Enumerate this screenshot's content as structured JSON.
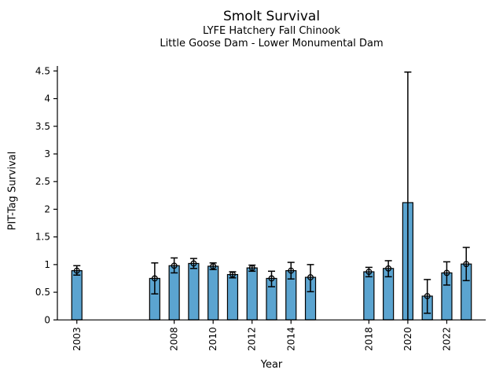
{
  "chart_data": {
    "type": "bar",
    "title": "Smolt Survival",
    "subtitle1": "LYFE Hatchery Fall Chinook",
    "subtitle2": "Little Goose Dam - Lower Monumental Dam",
    "xlabel": "Year",
    "ylabel": "PIT-Tag Survival",
    "xlim": [
      2002,
      2024
    ],
    "ylim": [
      0,
      4.59
    ],
    "xtick_labels": [
      "2003",
      "2008",
      "2010",
      "2012",
      "2014",
      "2018",
      "2020",
      "2022"
    ],
    "ytick_labels": [
      "0",
      "0.5",
      "1",
      "1.5",
      "2",
      "2.5",
      "3",
      "3.5",
      "4",
      "4.5"
    ],
    "grid": false,
    "legend": null,
    "bar_color": "#5BA4D0",
    "bar_edge_color": "#000000",
    "error_color": "#000000",
    "points": [
      {
        "year": 2003,
        "value": 0.89,
        "lo": 0.81,
        "hi": 0.98,
        "marker": true,
        "cap_lo": true
      },
      {
        "year": 2007,
        "value": 0.75,
        "lo": 0.47,
        "hi": 1.03,
        "marker": true,
        "cap_lo": true
      },
      {
        "year": 2008,
        "value": 0.98,
        "lo": 0.85,
        "hi": 1.12,
        "marker": true,
        "cap_lo": true
      },
      {
        "year": 2009,
        "value": 1.02,
        "lo": 0.93,
        "hi": 1.11,
        "marker": true,
        "cap_lo": true
      },
      {
        "year": 2010,
        "value": 0.97,
        "lo": 0.91,
        "hi": 1.03,
        "marker": true,
        "cap_lo": true
      },
      {
        "year": 2011,
        "value": 0.82,
        "lo": 0.76,
        "hi": 0.87,
        "marker": true,
        "cap_lo": true
      },
      {
        "year": 2012,
        "value": 0.94,
        "lo": 0.88,
        "hi": 0.99,
        "marker": true,
        "cap_lo": true
      },
      {
        "year": 2013,
        "value": 0.75,
        "lo": 0.6,
        "hi": 0.88,
        "marker": true,
        "cap_lo": true
      },
      {
        "year": 2014,
        "value": 0.89,
        "lo": 0.74,
        "hi": 1.04,
        "marker": true,
        "cap_lo": true
      },
      {
        "year": 2015,
        "value": 0.77,
        "lo": 0.51,
        "hi": 1.0,
        "marker": true,
        "cap_lo": true
      },
      {
        "year": 2018,
        "value": 0.87,
        "lo": 0.78,
        "hi": 0.95,
        "marker": true,
        "cap_lo": true
      },
      {
        "year": 2019,
        "value": 0.93,
        "lo": 0.78,
        "hi": 1.07,
        "marker": true,
        "cap_lo": true
      },
      {
        "year": 2020,
        "value": 2.12,
        "lo": 0.0,
        "hi": 4.48,
        "marker": false,
        "cap_lo": false
      },
      {
        "year": 2021,
        "value": 0.43,
        "lo": 0.12,
        "hi": 0.73,
        "marker": true,
        "cap_lo": true
      },
      {
        "year": 2022,
        "value": 0.85,
        "lo": 0.63,
        "hi": 1.05,
        "marker": true,
        "cap_lo": true
      },
      {
        "year": 2023,
        "value": 1.01,
        "lo": 0.71,
        "hi": 1.31,
        "marker": true,
        "cap_lo": true
      }
    ]
  }
}
